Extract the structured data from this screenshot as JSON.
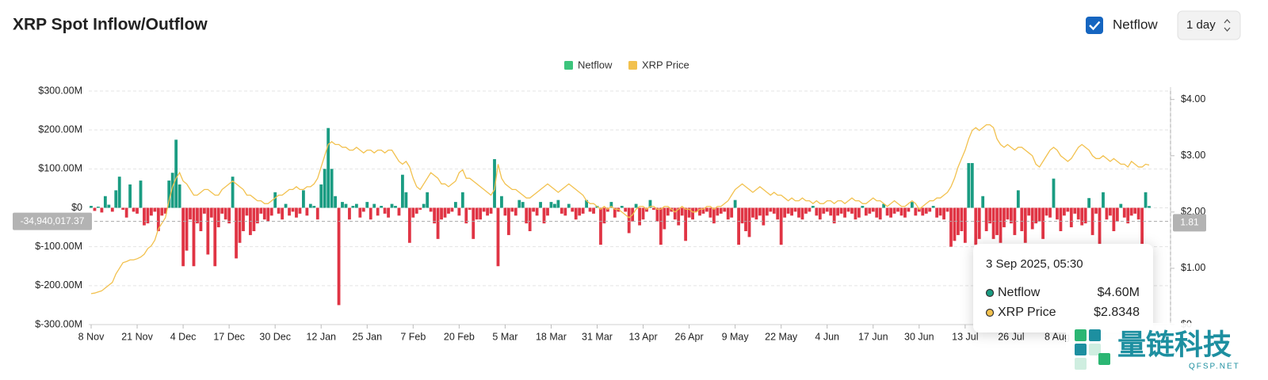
{
  "header": {
    "title": "XRP Spot Inflow/Outflow",
    "toggle": "Netflow",
    "toggle_checked": true,
    "interval": "1 day"
  },
  "chart_data": {
    "type": "bar-line",
    "categories": [
      "8 Nov",
      null,
      null,
      null,
      null,
      null,
      null,
      null,
      null,
      null,
      null,
      null,
      null,
      "21 Nov",
      null,
      null,
      null,
      null,
      null,
      null,
      null,
      null,
      null,
      null,
      null,
      null,
      "4 Dec",
      null,
      null,
      null,
      null,
      null,
      null,
      null,
      null,
      null,
      null,
      null,
      null,
      "17 Dec",
      null,
      null,
      null,
      null,
      null,
      null,
      null,
      null,
      null,
      null,
      null,
      null,
      "30 Dec",
      null,
      null,
      null,
      null,
      null,
      null,
      null,
      null,
      null,
      null,
      null,
      null,
      "12 Jan",
      null,
      null,
      null,
      null,
      null,
      null,
      null,
      null,
      null,
      null,
      null,
      null,
      "25 Jan",
      null,
      null,
      null,
      null,
      null,
      null,
      null,
      null,
      null,
      null,
      null,
      null,
      "7 Feb",
      null,
      null,
      null,
      null,
      null,
      null,
      null,
      null,
      null,
      null,
      null,
      null,
      "20 Feb",
      null,
      null,
      null,
      null,
      null,
      null,
      null,
      null,
      null,
      null,
      null,
      null,
      "5 Mar",
      null,
      null,
      null,
      null,
      null,
      null,
      null,
      null,
      null,
      null,
      null,
      null,
      "18 Mar",
      null,
      null,
      null,
      null,
      null,
      null,
      null,
      null,
      null,
      null,
      null,
      null,
      "31 Mar",
      null,
      null,
      null,
      null,
      null,
      null,
      null,
      null,
      null,
      null,
      null,
      null,
      "13 Apr",
      null,
      null,
      null,
      null,
      null,
      null,
      null,
      null,
      null,
      null,
      null,
      null,
      "26 Apr",
      null,
      null,
      null,
      null,
      null,
      null,
      null,
      null,
      null,
      null,
      null,
      null,
      "9 May",
      null,
      null,
      null,
      null,
      null,
      null,
      null,
      null,
      null,
      null,
      null,
      null,
      "22 May",
      null,
      null,
      null,
      null,
      null,
      null,
      null,
      null,
      null,
      null,
      null,
      null,
      "4 Jun",
      null,
      null,
      null,
      null,
      null,
      null,
      null,
      null,
      null,
      null,
      null,
      null,
      "17 Jun",
      null,
      null,
      null,
      null,
      null,
      null,
      null,
      null,
      null,
      null,
      null,
      null,
      "30 Jun",
      null,
      null,
      null,
      null,
      null,
      null,
      null,
      null,
      null,
      null,
      null,
      null,
      "13 Jul",
      null,
      null,
      null,
      null,
      null,
      null,
      null,
      null,
      null,
      null,
      null,
      null,
      "26 Jul",
      null,
      null,
      null,
      null,
      null,
      null,
      null,
      null,
      null,
      null,
      null,
      null,
      "8 Aug",
      null,
      null,
      null,
      null,
      null,
      null,
      null,
      null,
      null,
      null,
      null,
      null,
      null,
      null,
      null,
      null,
      null,
      null,
      null,
      null,
      null,
      null,
      null,
      null,
      null,
      null
    ],
    "series": [
      {
        "name": "Netflow",
        "color": "#3cc47c",
        "positive_color": "#1a9c82",
        "negative_color": "#e03444",
        "values": [
          5,
          -8,
          3,
          -12,
          30,
          8,
          -10,
          45,
          80,
          -5,
          -25,
          60,
          -10,
          -15,
          70,
          -45,
          -40,
          -20,
          -10,
          -60,
          -20,
          -15,
          70,
          90,
          175,
          60,
          -150,
          -110,
          -30,
          -150,
          -40,
          -60,
          -15,
          -120,
          -25,
          -150,
          -50,
          -15,
          -30,
          -40,
          80,
          -130,
          -90,
          -60,
          -20,
          -70,
          -60,
          -40,
          -15,
          -30,
          -35,
          -20,
          40,
          -15,
          -30,
          10,
          -20,
          -10,
          -25,
          -15,
          45,
          -20,
          10,
          5,
          -30,
          60,
          100,
          205,
          100,
          30,
          -250,
          15,
          10,
          -30,
          5,
          10,
          -25,
          -10,
          15,
          -30,
          10,
          -20,
          5,
          -15,
          -25,
          10,
          5,
          -20,
          85,
          40,
          -90,
          -25,
          -15,
          -5,
          10,
          40,
          -10,
          -40,
          -80,
          -30,
          -25,
          -15,
          -10,
          15,
          -20,
          40,
          -40,
          -5,
          -80,
          -30,
          -30,
          -10,
          -20,
          -15,
          125,
          -150,
          30,
          -20,
          -70,
          -10,
          -20,
          20,
          15,
          -40,
          -60,
          -10,
          -20,
          15,
          -40,
          -20,
          15,
          10,
          20,
          -15,
          -20,
          10,
          -10,
          -30,
          -20,
          -15,
          20,
          -10,
          -15,
          5,
          -95,
          -40,
          -10,
          15,
          -25,
          -10,
          5,
          -10,
          -65,
          -35,
          10,
          -45,
          -30,
          -10,
          20,
          -5,
          -35,
          -95,
          -55,
          -20,
          -10,
          -30,
          -45,
          -20,
          -85,
          -25,
          -30,
          -10,
          -20,
          -15,
          -10,
          -25,
          -40,
          -20,
          -15,
          -10,
          -30,
          -25,
          20,
          -95,
          -40,
          -60,
          -75,
          -25,
          -30,
          -20,
          -45,
          -20,
          -10,
          -15,
          -30,
          -95,
          -25,
          -15,
          -20,
          -10,
          -25,
          -30,
          -15,
          -10,
          5,
          -20,
          -30,
          -15,
          -10,
          -20,
          -40,
          -20,
          -15,
          -25,
          -10,
          -15,
          -30,
          -25,
          5,
          -20,
          -15,
          -10,
          -25,
          -30,
          10,
          -20,
          -25,
          -15,
          -10,
          -20,
          -25,
          -10,
          15,
          -20,
          -10,
          -20,
          -15,
          -10,
          5,
          -25,
          -20,
          -30,
          -10,
          -100,
          -85,
          -70,
          -60,
          -90,
          115,
          115,
          -95,
          -80,
          30,
          -60,
          -40,
          -80,
          -70,
          -90,
          -50,
          -30,
          -40,
          -70,
          45,
          -60,
          -90,
          -20,
          -55,
          -40,
          -35,
          -80,
          -20,
          -25,
          75,
          -30,
          -60,
          -20,
          -10,
          -50,
          -15,
          -30,
          -45,
          -40,
          25,
          -70,
          -15,
          -100,
          40,
          -30,
          -20,
          -60,
          -35,
          10,
          -25,
          -40,
          -20,
          -15,
          -30,
          -100,
          40,
          4.6
        ]
      },
      {
        "name": "XRP Price",
        "color": "#f2c14e",
        "axis": "y2",
        "values": [
          0.55,
          0.56,
          0.58,
          0.6,
          0.65,
          0.7,
          0.75,
          0.9,
          1.0,
          1.1,
          1.12,
          1.15,
          1.15,
          1.17,
          1.2,
          1.25,
          1.35,
          1.4,
          1.5,
          1.7,
          1.8,
          1.9,
          2.2,
          2.45,
          2.6,
          2.7,
          2.55,
          2.5,
          2.4,
          2.3,
          2.3,
          2.35,
          2.4,
          2.4,
          2.35,
          2.3,
          2.3,
          2.4,
          2.45,
          2.5,
          2.55,
          2.5,
          2.45,
          2.4,
          2.3,
          2.3,
          2.25,
          2.2,
          2.2,
          2.15,
          2.15,
          2.2,
          2.25,
          2.3,
          2.3,
          2.35,
          2.4,
          2.4,
          2.45,
          2.4,
          2.4,
          2.45,
          2.45,
          2.5,
          2.6,
          2.8,
          3.0,
          3.2,
          3.25,
          3.2,
          3.2,
          3.15,
          3.15,
          3.1,
          3.1,
          3.15,
          3.1,
          3.05,
          3.1,
          3.1,
          3.05,
          3.1,
          3.1,
          3.05,
          3.1,
          3.1,
          3.0,
          2.9,
          2.85,
          2.9,
          2.8,
          2.6,
          2.45,
          2.4,
          2.5,
          2.6,
          2.7,
          2.65,
          2.6,
          2.5,
          2.5,
          2.45,
          2.5,
          2.55,
          2.7,
          2.75,
          2.6,
          2.6,
          2.55,
          2.5,
          2.45,
          2.4,
          2.35,
          2.3,
          2.4,
          2.85,
          2.6,
          2.5,
          2.45,
          2.4,
          2.4,
          2.35,
          2.3,
          2.25,
          2.25,
          2.3,
          2.35,
          2.4,
          2.45,
          2.5,
          2.45,
          2.4,
          2.35,
          2.4,
          2.45,
          2.5,
          2.45,
          2.4,
          2.35,
          2.3,
          2.2,
          2.15,
          2.15,
          2.1,
          2.05,
          2.1,
          2.05,
          2.1,
          2.05,
          2.05,
          2.0,
          1.95,
          1.9,
          1.95,
          2.05,
          2.1,
          2.1,
          2.05,
          2.1,
          2.1,
          2.05,
          2.05,
          2.1,
          2.1,
          2.05,
          2.0,
          2.05,
          2.1,
          2.05,
          2.05,
          2.0,
          2.0,
          2.05,
          2.05,
          2.1,
          2.1,
          2.05,
          2.1,
          2.1,
          2.15,
          2.2,
          2.3,
          2.4,
          2.45,
          2.5,
          2.45,
          2.4,
          2.35,
          2.4,
          2.45,
          2.4,
          2.35,
          2.3,
          2.35,
          2.3,
          2.3,
          2.25,
          2.2,
          2.25,
          2.2,
          2.2,
          2.25,
          2.2,
          2.2,
          2.15,
          2.2,
          2.15,
          2.15,
          2.2,
          2.2,
          2.15,
          2.2,
          2.2,
          2.15,
          2.2,
          2.25,
          2.2,
          2.2,
          2.15,
          2.15,
          2.2,
          2.25,
          2.2,
          2.2,
          2.15,
          2.1,
          2.15,
          2.2,
          2.15,
          2.1,
          2.1,
          2.15,
          2.2,
          2.15,
          2.05,
          2.1,
          2.15,
          2.2,
          2.2,
          2.25,
          2.25,
          2.3,
          2.35,
          2.45,
          2.6,
          2.8,
          2.95,
          3.1,
          3.3,
          3.45,
          3.5,
          3.45,
          3.5,
          3.55,
          3.55,
          3.5,
          3.3,
          3.2,
          3.15,
          3.2,
          3.15,
          3.1,
          3.15,
          3.15,
          3.1,
          3.05,
          3.0,
          2.85,
          2.8,
          2.9,
          3.0,
          3.1,
          3.15,
          3.1,
          3.0,
          2.95,
          2.9,
          2.95,
          3.05,
          3.15,
          3.2,
          3.15,
          3.1,
          3.0,
          2.95,
          2.95,
          3.0,
          2.95,
          2.9,
          2.95,
          2.9,
          2.85,
          2.85,
          2.8,
          2.9,
          2.85,
          2.8,
          2.8,
          2.85,
          2.8348
        ]
      }
    ],
    "ylim": [
      -300,
      300
    ],
    "yticks": [
      {
        "value": 300,
        "label": "$300.00M"
      },
      {
        "value": 200,
        "label": "$200.00M"
      },
      {
        "value": 100,
        "label": "$100.00M"
      },
      {
        "value": 0,
        "label": "$0"
      },
      {
        "value": -100,
        "label": "$-100.00M"
      },
      {
        "value": -200,
        "label": "$-200.00M"
      },
      {
        "value": -300,
        "label": "$-300.00M"
      }
    ],
    "y2lim": [
      0,
      4.15
    ],
    "y2ticks": [
      {
        "value": 4,
        "label": "$4.00"
      },
      {
        "value": 3,
        "label": "$3.00"
      },
      {
        "value": 2,
        "label": "$2.00"
      },
      {
        "value": 1,
        "label": "$1.00"
      },
      {
        "value": 0,
        "label": "$0"
      }
    ],
    "grid": true,
    "legend": "top",
    "crosshair": {
      "y": -34.94001737,
      "label": "-34,940,017.37",
      "y2": 1.81
    },
    "tooltip": {
      "title": "3 Sep 2025, 05:30",
      "labels": [
        "$4.60M",
        "$2.8348"
      ]
    }
  },
  "watermark": {
    "name": "量链科技",
    "site": "QFSP.NET"
  }
}
